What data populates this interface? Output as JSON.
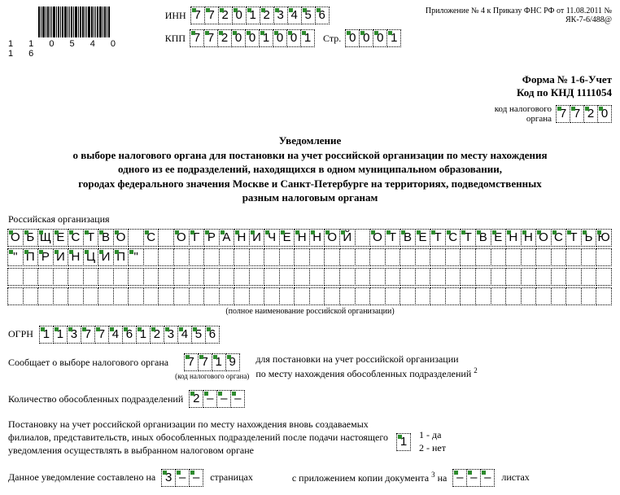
{
  "header": {
    "barcode_number": "1 1 0 5 4 0 1 6",
    "inn_label": "ИНН",
    "kpp_label": "КПП",
    "page_label": "Стр.",
    "inn": [
      "7",
      "7",
      "2",
      "0",
      "1",
      "2",
      "3",
      "4",
      "5",
      "6"
    ],
    "kpp": [
      "7",
      "7",
      "2",
      "0",
      "0",
      "1",
      "0",
      "0",
      "1"
    ],
    "page": [
      "0",
      "0",
      "0",
      "1"
    ],
    "appendix": "Приложение № 4 к Приказу ФНС РФ от 11.08.2011 № ЯК-7-6/488@"
  },
  "form_line1": "Форма № 1-6-Учет",
  "form_line2": "Код по КНД 1111054",
  "tax_org_code_label": "код налогового\nоргана",
  "tax_org_code": [
    "7",
    "7",
    "2",
    "0"
  ],
  "title_lines": [
    "Уведомление",
    "о выборе налогового органа для постановки на учет российской организации по месту нахождения",
    "одного из ее подразделений, находящихся в одном муниципальном образовании,",
    "городах федерального значения Москве и Санкт-Петербурге на территориях, подведомственных",
    "разным налоговым органам"
  ],
  "org_label": "Российская организация",
  "org_lines": [
    [
      "О",
      "Б",
      "Щ",
      "Е",
      "С",
      "Т",
      "В",
      "О",
      "",
      "С",
      "",
      "О",
      "Г",
      "Р",
      "А",
      "Н",
      "И",
      "Ч",
      "Е",
      "Н",
      "Н",
      "О",
      "Й",
      "",
      "О",
      "Т",
      "В",
      "Е",
      "Т",
      "С",
      "Т",
      "В",
      "Е",
      "Н",
      "Н",
      "О",
      "С",
      "Т",
      "Ь",
      "Ю"
    ],
    [
      "\"",
      "П",
      "Р",
      "И",
      "Н",
      "Ц",
      "И",
      "П",
      "\"",
      "",
      "",
      "",
      "",
      "",
      "",
      "",
      "",
      "",
      "",
      "",
      "",
      "",
      "",
      "",
      "",
      "",
      "",
      "",
      "",
      "",
      "",
      "",
      "",
      "",
      "",
      "",
      "",
      "",
      "",
      ""
    ],
    [
      "",
      "",
      "",
      "",
      "",
      "",
      "",
      "",
      "",
      "",
      "",
      "",
      "",
      "",
      "",
      "",
      "",
      "",
      "",
      "",
      "",
      "",
      "",
      "",
      "",
      "",
      "",
      "",
      "",
      "",
      "",
      "",
      "",
      "",
      "",
      "",
      "",
      "",
      "",
      ""
    ],
    [
      "",
      "",
      "",
      "",
      "",
      "",
      "",
      "",
      "",
      "",
      "",
      "",
      "",
      "",
      "",
      "",
      "",
      "",
      "",
      "",
      "",
      "",
      "",
      "",
      "",
      "",
      "",
      "",
      "",
      "",
      "",
      "",
      "",
      "",
      "",
      "",
      "",
      "",
      "",
      ""
    ]
  ],
  "org_caption": "(полное наименование российской организации)",
  "ogrn_label": "ОГРН",
  "ogrn": [
    "1",
    "1",
    "3",
    "7",
    "7",
    "4",
    "6",
    "1",
    "2",
    "3",
    "4",
    "5",
    "6"
  ],
  "choice_label": "Сообщает о выборе налогового органа",
  "choice_code": [
    "7",
    "7",
    "1",
    "9"
  ],
  "choice_sub": "(код налогового органа)",
  "choice_text1": "для постановки на учет российской организации",
  "choice_text2": "по месту нахождения обособленных подразделений",
  "choice_sup": "2",
  "count_label": "Количество обособленных подразделений",
  "count": [
    "2",
    "–",
    "–",
    "–"
  ],
  "reg_para": "Постановку на учет российской организации по месту нахождения вновь создаваемых филиалов, представительств, иных обособленных подразделений после подачи настоящего уведомления осуществлять в выбранном налоговом органе",
  "yesno_cells": [
    "1"
  ],
  "yes_label": "1 - да",
  "no_label": "2 - нет",
  "footer_t1": "Данное уведомление составлено на",
  "footer_pages": [
    "3",
    "–",
    "–"
  ],
  "footer_t2": "страницах",
  "footer_t3": "с приложением копии документа",
  "footer_sup": "3",
  "footer_t4": "на",
  "footer_sheets": [
    "–",
    "–",
    "–"
  ],
  "footer_t5": "листах"
}
